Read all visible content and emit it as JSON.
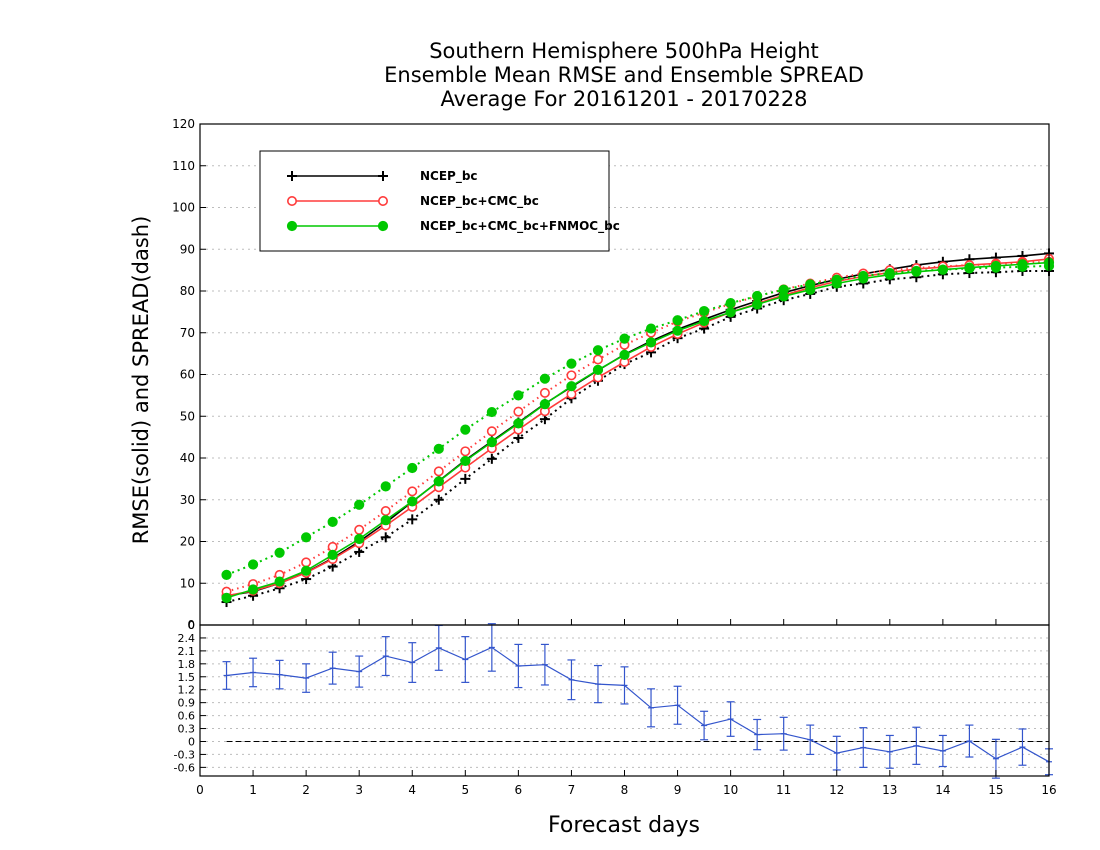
{
  "chart_data": [
    {
      "type": "line",
      "title": [
        "Southern Hemisphere 500hPa Height",
        "Ensemble Mean RMSE and Ensemble SPREAD",
        "Average For 20161201 - 20170228"
      ],
      "xlabel": "Forecast days",
      "ylabel": "RMSE(solid) and SPREAD(dash)",
      "xlim": [
        0,
        16
      ],
      "ylim": [
        0,
        120
      ],
      "xticks": [
        0,
        1,
        2,
        3,
        4,
        5,
        6,
        7,
        8,
        9,
        10,
        11,
        12,
        13,
        14,
        15,
        16
      ],
      "yticks": [
        0,
        10,
        20,
        30,
        40,
        50,
        60,
        70,
        80,
        90,
        100,
        110,
        120
      ],
      "grid": true,
      "legend_position": "top-left",
      "x": [
        0.5,
        1,
        1.5,
        2,
        2.5,
        3,
        3.5,
        4,
        4.5,
        5,
        5.5,
        6,
        6.5,
        7,
        7.5,
        8,
        8.5,
        9,
        9.5,
        10,
        10.5,
        11,
        11.5,
        12,
        12.5,
        13,
        13.5,
        14,
        14.5,
        15,
        15.5,
        16
      ],
      "series": [
        {
          "name": "NCEP_bc",
          "color": "#000000",
          "marker": "plus",
          "rmse": [
            7,
            8,
            10,
            12.6,
            16,
            20,
            24.5,
            29.5,
            34.5,
            39.5,
            44,
            48.5,
            53,
            57,
            61,
            64.8,
            68,
            70.8,
            73.2,
            75.5,
            77.6,
            79.6,
            81.3,
            82.8,
            84.1,
            85.2,
            86.2,
            87,
            87.6,
            88,
            88.4,
            89
          ],
          "spread": [
            5.5,
            7,
            8.8,
            11,
            14,
            17.5,
            21,
            25.3,
            30,
            35,
            39.8,
            44.8,
            49.3,
            54.3,
            58.5,
            62.5,
            65.3,
            68.7,
            71,
            73.8,
            75.8,
            77.8,
            79.3,
            81,
            81.8,
            82.8,
            83.3,
            84,
            84.3,
            84.5,
            84.8,
            84.8
          ]
        },
        {
          "name": "NCEP_bc+CMC_bc",
          "color": "#ff3b3b",
          "marker": "open-circle",
          "rmse": [
            7,
            8.2,
            10,
            12.5,
            15.8,
            19.6,
            23.8,
            28.3,
            33,
            37.7,
            42.3,
            46.8,
            51.2,
            55.3,
            59.3,
            63,
            66.6,
            69.7,
            72.4,
            74.9,
            77,
            79,
            80.8,
            82.3,
            83.5,
            84.4,
            85.3,
            85.7,
            86.2,
            86.6,
            87,
            87.7
          ],
          "spread": [
            8,
            9.8,
            12,
            15,
            18.7,
            22.8,
            27.3,
            32,
            36.8,
            41.6,
            46.4,
            51.1,
            55.6,
            59.8,
            63.6,
            67.1,
            70,
            72.7,
            74.8,
            76.9,
            78.7,
            80.4,
            81.8,
            83.2,
            84.2,
            85,
            85.5,
            85.9,
            86.2,
            86.4,
            86.7,
            87
          ]
        },
        {
          "name": "NCEP_bc+CMC_bc+FNMOC_bc",
          "color": "#00c800",
          "marker": "filled-circle",
          "rmse": [
            6.5,
            8.5,
            10.4,
            13,
            16.8,
            20.6,
            25.1,
            29.6,
            34.4,
            39.3,
            43.8,
            48.3,
            52.9,
            57.2,
            61.1,
            64.7,
            67.7,
            70.5,
            72.8,
            74.9,
            76.8,
            78.7,
            80.3,
            81.8,
            83,
            83.9,
            84.6,
            85.1,
            85.6,
            86,
            86.4,
            86.8
          ],
          "spread": [
            12,
            14.5,
            17.3,
            21,
            24.7,
            28.8,
            33.2,
            37.6,
            42.2,
            46.8,
            51,
            55,
            59,
            62.6,
            65.8,
            68.6,
            71,
            73,
            75.2,
            77.1,
            78.8,
            80.3,
            81.6,
            82.7,
            83.6,
            84.3,
            84.8,
            85.1,
            85.4,
            85.6,
            85.8,
            86
          ]
        }
      ]
    },
    {
      "type": "line",
      "panel": "difference with error bars",
      "xlim": [
        0,
        16
      ],
      "ylim": [
        -0.8,
        2.7
      ],
      "yticks": [
        -0.6,
        -0.3,
        0,
        0.3,
        0.6,
        0.9,
        1.2,
        1.5,
        1.8,
        2.1,
        2.4
      ],
      "color": "#3355cc",
      "x": [
        0.5,
        1,
        1.5,
        2,
        2.5,
        3,
        3.5,
        4,
        4.5,
        5,
        5.5,
        6,
        6.5,
        7,
        7.5,
        8,
        8.5,
        9,
        9.5,
        10,
        10.5,
        11,
        11.5,
        12,
        12.5,
        13,
        13.5,
        14,
        14.5,
        15,
        15.5,
        16
      ],
      "values": [
        1.53,
        1.6,
        1.55,
        1.47,
        1.7,
        1.62,
        1.98,
        1.83,
        2.17,
        1.9,
        2.18,
        1.75,
        1.78,
        1.43,
        1.33,
        1.3,
        0.78,
        0.84,
        0.37,
        0.52,
        0.16,
        0.18,
        0.04,
        -0.27,
        -0.14,
        -0.24,
        -0.1,
        -0.22,
        0.01,
        -0.4,
        -0.13,
        -0.47
      ],
      "errors": [
        0.32,
        0.33,
        0.33,
        0.33,
        0.37,
        0.36,
        0.45,
        0.46,
        0.52,
        0.53,
        0.55,
        0.5,
        0.47,
        0.46,
        0.43,
        0.43,
        0.44,
        0.44,
        0.33,
        0.4,
        0.35,
        0.38,
        0.34,
        0.39,
        0.46,
        0.38,
        0.43,
        0.36,
        0.37,
        0.45,
        0.42,
        0.3
      ],
      "reference_line": 0
    }
  ]
}
